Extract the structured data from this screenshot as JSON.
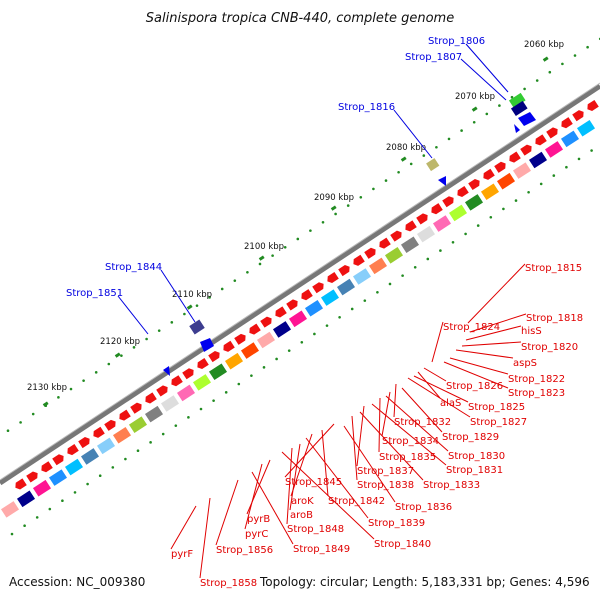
{
  "title": "Salinispora tropica CNB-440, complete genome",
  "footer": {
    "accession": "Accession: NC_009380",
    "topology": "Topology: circular; Length: 5,183,331 bp; Genes: 4,596"
  },
  "ticks": [
    "2060 kbp",
    "2070 kbp",
    "2080 kbp",
    "2090 kbp",
    "2100 kbp",
    "2110 kbp",
    "2120 kbp",
    "2130 kbp"
  ],
  "blue_labels": [
    "Strop_1806",
    "Strop_1807",
    "Strop_1816",
    "Strop_1844",
    "Strop_1851"
  ],
  "red_labels": [
    "Strop_1815",
    "Strop_1818",
    "hisS",
    "Strop_1820",
    "aspS",
    "Strop_1822",
    "Strop_1823",
    "Strop_1824",
    "Strop_1826",
    "alaS",
    "Strop_1825",
    "Strop_1827",
    "Strop_1832",
    "Strop_1829",
    "Strop_1834",
    "Strop_1830",
    "Strop_1835",
    "Strop_1831",
    "Strop_1837",
    "Strop_1833",
    "Strop_1838",
    "Strop_1845",
    "Strop_1836",
    "Strop_1842",
    "aroK",
    "Strop_1839",
    "aroB",
    "Strop_1848",
    "pyrB",
    "pyrC",
    "Strop_1840",
    "Strop_1856",
    "Strop_1849",
    "pyrF",
    "Strop_1858"
  ],
  "colors": {
    "forward_gene": "#ff0000",
    "reverse_gene": "#0000ff",
    "backbone": "#808080",
    "tick_dot": "#228b22"
  }
}
